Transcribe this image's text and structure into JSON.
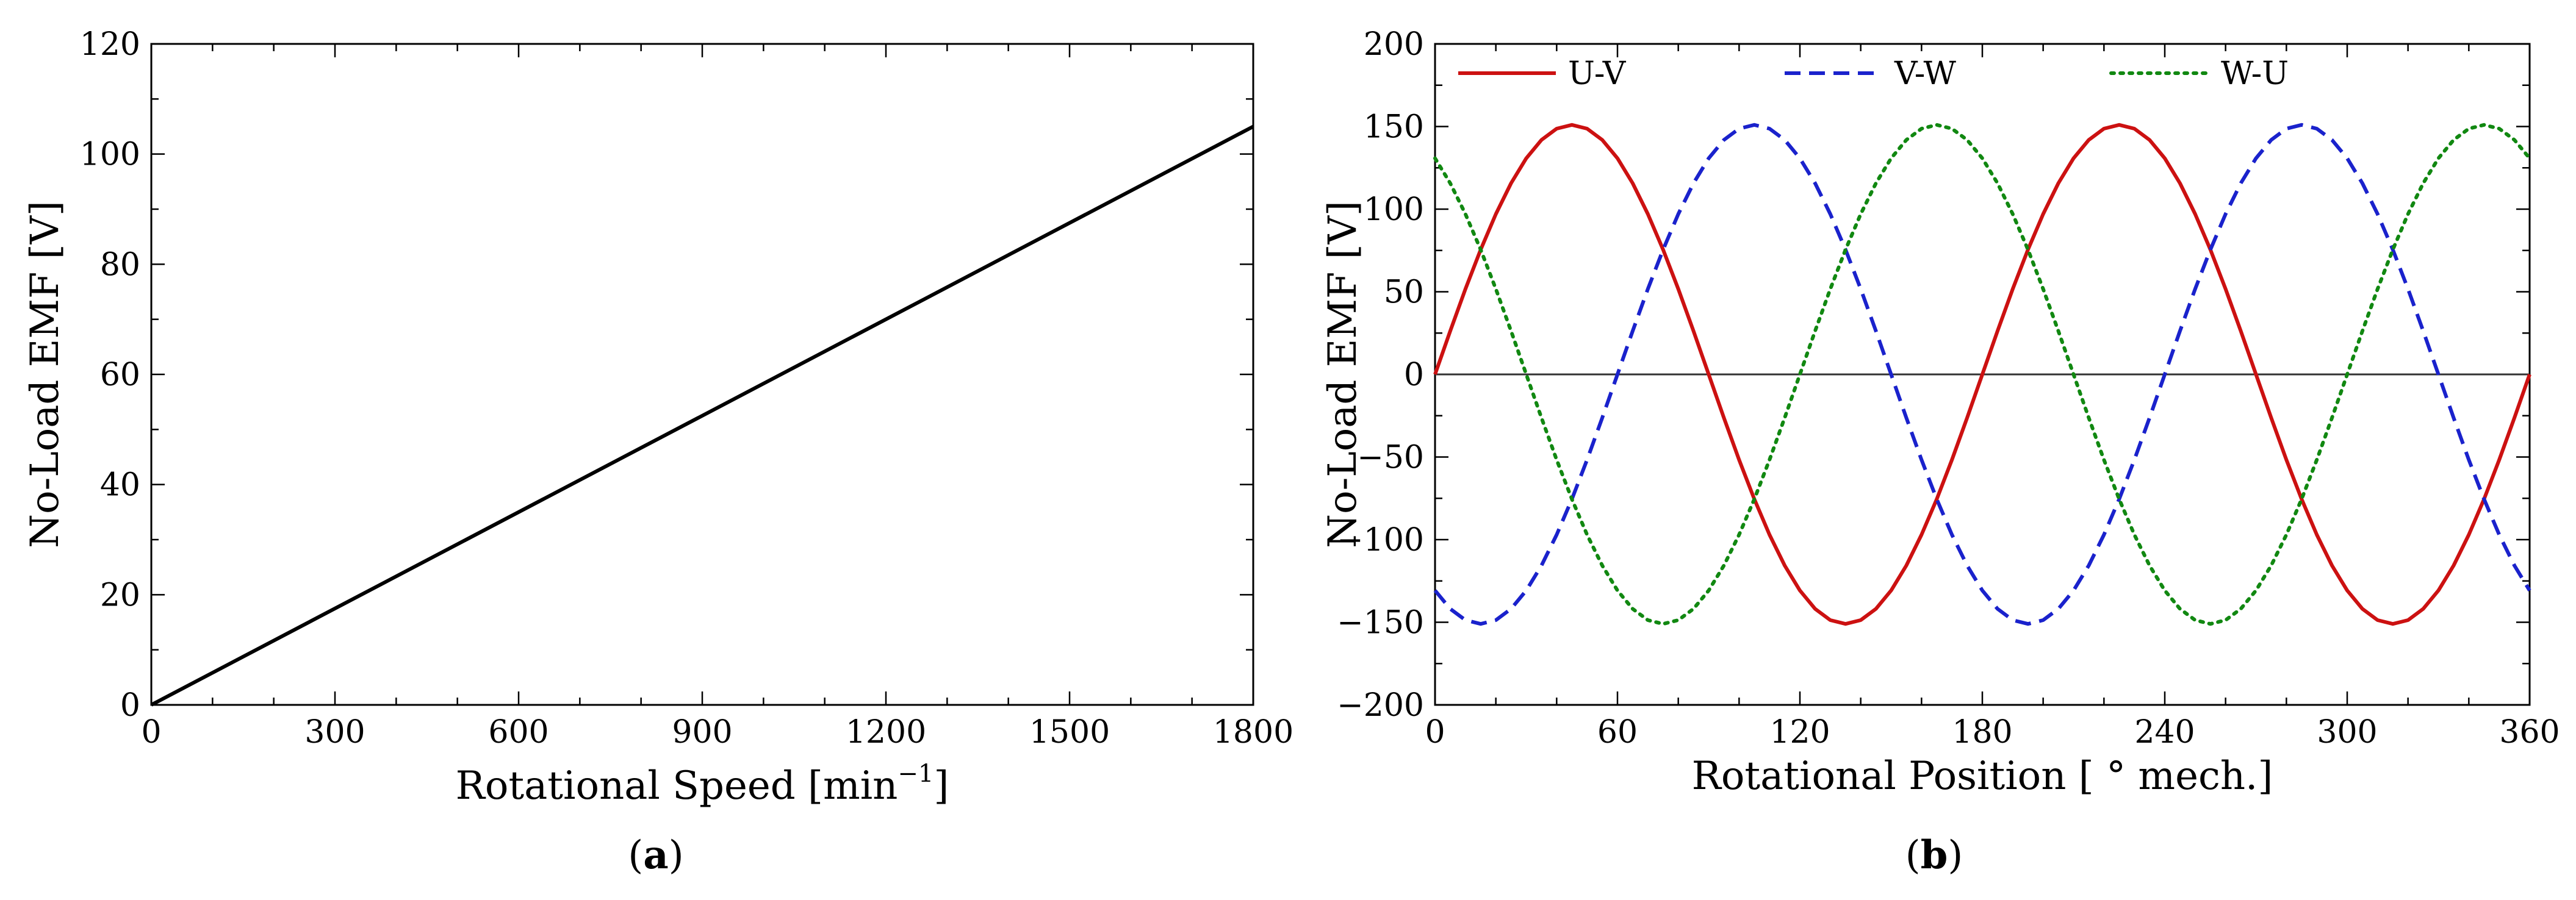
{
  "chart_data": [
    {
      "type": "line",
      "panel_label": "a",
      "xlabel": "Rotational Speed [min",
      "xlabel_sup": "−1",
      "xlabel_end": "]",
      "ylabel": "No-Load EMF [V]",
      "xlim": [
        0,
        1800
      ],
      "ylim": [
        0,
        120
      ],
      "xticks": [
        0,
        300,
        600,
        900,
        1200,
        1500,
        1800
      ],
      "yticks": [
        0,
        20,
        40,
        60,
        80,
        100,
        120
      ],
      "x_minor_step": 100,
      "y_minor_step": 10,
      "series": [
        {
          "name": "EMF",
          "color": "#000000",
          "style": "solid",
          "x": [
            0,
            1800
          ],
          "y": [
            0,
            105
          ]
        }
      ]
    },
    {
      "type": "line",
      "panel_label": "b",
      "xlabel": "Rotational Position [ ° mech.]",
      "ylabel": "No-Load EMF [V]",
      "xlim": [
        0,
        360
      ],
      "ylim": [
        -200,
        200
      ],
      "xticks": [
        0,
        60,
        120,
        180,
        240,
        300,
        360
      ],
      "yticks": [
        -200,
        -150,
        -100,
        -50,
        0,
        50,
        100,
        150,
        200
      ],
      "x_minor_step": 20,
      "y_minor_step": 25,
      "zero_line": true,
      "legend_position": "top",
      "waveform": {
        "amplitude": 151,
        "period_deg": 180,
        "x_step": 5
      },
      "series": [
        {
          "name": "U-V",
          "color": "#cc1111",
          "style": "solid",
          "phase_deg": 0
        },
        {
          "name": "V-W",
          "color": "#1a22cc",
          "style": "dashed",
          "phase_deg": -120
        },
        {
          "name": "W-U",
          "color": "#118811",
          "style": "dotted",
          "phase_deg": 120
        }
      ]
    }
  ]
}
